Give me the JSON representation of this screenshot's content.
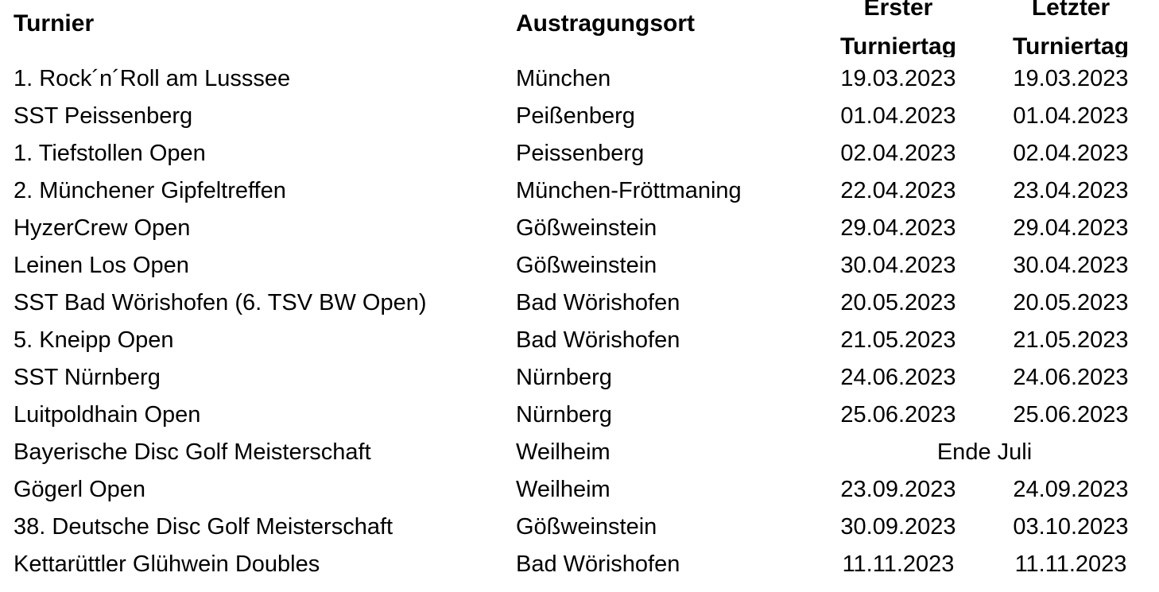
{
  "headers": {
    "tournament": "Turnier",
    "venue": "Austragungsort",
    "first_day_line1": "Erster",
    "first_day_line2": "Turniertag",
    "last_day_line1": "Letzter",
    "last_day_line2": "Turniertag"
  },
  "rows": [
    {
      "name": "1. Rock´n´Roll am Lusssee",
      "place": "München",
      "first": "19.03.2023",
      "last": "19.03.2023"
    },
    {
      "name": "SST Peissenberg",
      "place": "Peißenberg",
      "first": "01.04.2023",
      "last": "01.04.2023"
    },
    {
      "name": "1. Tiefstollen Open",
      "place": "Peissenberg",
      "first": "02.04.2023",
      "last": "02.04.2023"
    },
    {
      "name": "2. Münchener Gipfeltreffen",
      "place": "München-Fröttmaning",
      "first": "22.04.2023",
      "last": "23.04.2023"
    },
    {
      "name": "HyzerCrew Open",
      "place": "Gößweinstein",
      "first": "29.04.2023",
      "last": "29.04.2023"
    },
    {
      "name": "Leinen Los Open",
      "place": "Gößweinstein",
      "first": "30.04.2023",
      "last": "30.04.2023"
    },
    {
      "name": "SST Bad Wörishofen (6. TSV BW Open)",
      "place": "Bad Wörishofen",
      "first": "20.05.2023",
      "last": "20.05.2023"
    },
    {
      "name": "5. Kneipp Open",
      "place": "Bad Wörishofen",
      "first": "21.05.2023",
      "last": "21.05.2023"
    },
    {
      "name": "SST Nürnberg",
      "place": "Nürnberg",
      "first": "24.06.2023",
      "last": "24.06.2023"
    },
    {
      "name": "Luitpoldhain Open",
      "place": "Nürnberg",
      "first": "25.06.2023",
      "last": "25.06.2023"
    },
    {
      "name": "Bayerische Disc Golf Meisterschaft",
      "place": "Weilheim",
      "merged_dates": "Ende Juli"
    },
    {
      "name": "Gögerl Open",
      "place": "Weilheim",
      "first": "23.09.2023",
      "last": "24.09.2023"
    },
    {
      "name": "38. Deutsche Disc Golf Meisterschaft",
      "place": "Gößweinstein",
      "first": "30.09.2023",
      "last": "03.10.2023"
    },
    {
      "name": "Kettarüttler Glühwein Doubles",
      "place": "Bad Wörishofen",
      "first": "11.11.2023",
      "last": "11.11.2023"
    }
  ]
}
